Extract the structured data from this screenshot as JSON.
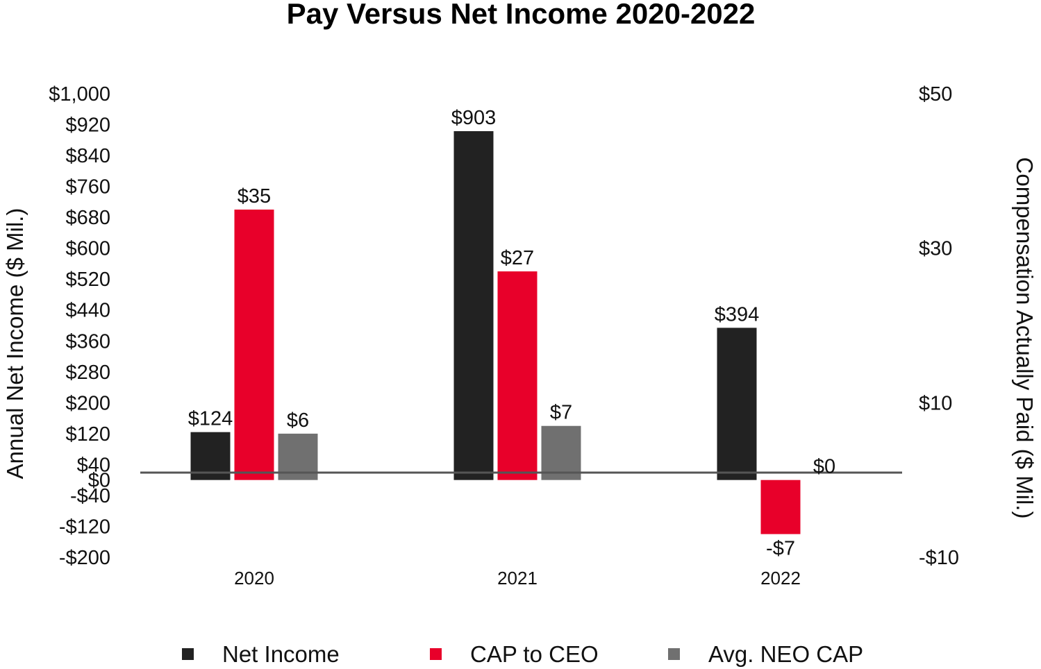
{
  "chart_data": {
    "type": "bar",
    "title": "Pay Versus Net Income 2020-2022",
    "categories": [
      "2020",
      "2021",
      "2022"
    ],
    "ylabel_left": "Annual Net Income ($ Mil.)",
    "ylabel_right": "Compensation Actually Paid ($ Mil.)",
    "ylim_left": [
      -200,
      1000
    ],
    "ylim_right": [
      -10,
      50
    ],
    "left_ticks": [
      1000,
      920,
      840,
      760,
      680,
      600,
      520,
      440,
      360,
      280,
      200,
      120,
      40,
      0,
      -40,
      -120,
      -200
    ],
    "left_tick_labels": [
      "$1,000",
      "$920",
      "$840",
      "$760",
      "$680",
      "$600",
      "$520",
      "$440",
      "$360",
      "$280",
      "$200",
      "$120",
      "$40",
      "$0",
      "-$40",
      "-$120",
      "-$200"
    ],
    "right_ticks": [
      50,
      30,
      10,
      -10
    ],
    "right_tick_labels": [
      "$50",
      "$30",
      "$10",
      "-$10"
    ],
    "series": [
      {
        "name": "Net Income",
        "axis": "left",
        "color": "#222222",
        "values": [
          124,
          903,
          394
        ],
        "labels": [
          "$124",
          "$903",
          "$394"
        ]
      },
      {
        "name": "CAP to CEO",
        "axis": "right",
        "color": "#e8002a",
        "values": [
          35,
          27,
          -7
        ],
        "labels": [
          "$35",
          "$27",
          "-$7"
        ]
      },
      {
        "name": "Avg. NEO CAP",
        "axis": "right",
        "color": "#707070",
        "values": [
          6,
          7,
          0
        ],
        "labels": [
          "$6",
          "$7",
          "$0"
        ]
      }
    ],
    "legend_position": "bottom",
    "grid": false
  }
}
